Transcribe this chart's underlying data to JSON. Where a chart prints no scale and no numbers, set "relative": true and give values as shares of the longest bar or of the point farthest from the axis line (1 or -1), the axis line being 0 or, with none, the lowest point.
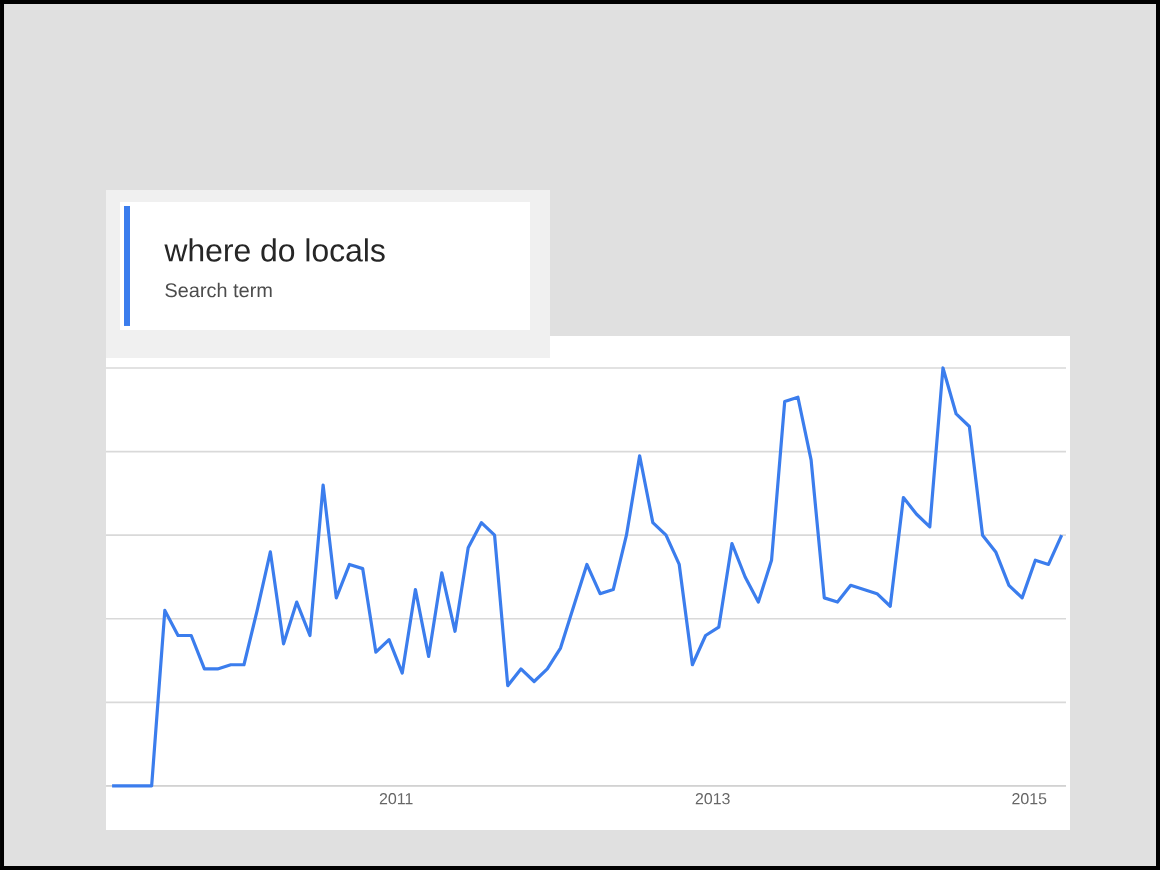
{
  "chart_data": {
    "type": "line",
    "relative": true,
    "legend": "top left",
    "legend_title": "Search term",
    "grid": "y",
    "xlim": [
      "2009-03-01",
      "2015-03-25"
    ],
    "xticks": [
      "2011",
      "2013",
      "2015"
    ],
    "x": [
      "2009-03-15",
      "2009-04-15",
      "2009-05-15",
      "2009-06-15",
      "2009-07-15",
      "2009-08-15",
      "2009-09-15",
      "2009-10-15",
      "2009-11-15",
      "2009-12-15",
      "2010-01-15",
      "2010-02-15",
      "2010-03-15",
      "2010-04-15",
      "2010-05-15",
      "2010-06-15",
      "2010-07-15",
      "2010-08-15",
      "2010-09-15",
      "2010-10-15",
      "2010-11-15",
      "2010-12-15",
      "2011-01-15",
      "2011-02-15",
      "2011-03-15",
      "2011-04-15",
      "2011-05-15",
      "2011-06-15",
      "2011-07-15",
      "2011-08-15",
      "2011-09-15",
      "2011-10-15",
      "2011-11-15",
      "2011-12-15",
      "2012-01-15",
      "2012-02-15",
      "2012-03-15",
      "2012-04-15",
      "2012-05-15",
      "2012-06-15",
      "2012-07-15",
      "2012-08-15",
      "2012-09-15",
      "2012-10-15",
      "2012-11-15",
      "2012-12-15",
      "2013-01-15",
      "2013-02-15",
      "2013-03-15",
      "2013-04-15",
      "2013-05-15",
      "2013-06-15",
      "2013-07-15",
      "2013-08-15",
      "2013-09-15",
      "2013-10-15",
      "2013-11-15",
      "2013-12-15",
      "2014-01-15",
      "2014-02-15",
      "2014-03-15",
      "2014-04-15",
      "2014-05-15",
      "2014-06-15",
      "2014-07-15",
      "2014-08-15",
      "2014-09-15",
      "2014-10-15",
      "2014-11-15",
      "2014-12-15",
      "2015-01-15",
      "2015-02-15",
      "2015-03-15"
    ],
    "series": [
      {
        "name": "where do locals",
        "color": "#3b7ded",
        "values": [
          0,
          0,
          0,
          0,
          0.42,
          0.36,
          0.36,
          0.28,
          0.28,
          0.29,
          0.29,
          0.42,
          0.56,
          0.34,
          0.44,
          0.36,
          0.72,
          0.45,
          0.53,
          0.52,
          0.32,
          0.35,
          0.27,
          0.47,
          0.31,
          0.51,
          0.37,
          0.57,
          0.63,
          0.6,
          0.24,
          0.28,
          0.25,
          0.28,
          0.33,
          0.43,
          0.53,
          0.46,
          0.47,
          0.6,
          0.79,
          0.63,
          0.6,
          0.53,
          0.29,
          0.36,
          0.38,
          0.58,
          0.5,
          0.44,
          0.54,
          0.92,
          0.93,
          0.78,
          0.45,
          0.44,
          0.48,
          0.47,
          0.46,
          0.43,
          0.69,
          0.65,
          0.62,
          1,
          0.89,
          0.86,
          0.6,
          0.56,
          0.48,
          0.45,
          0.54,
          0.53,
          0.6
        ]
      }
    ]
  }
}
